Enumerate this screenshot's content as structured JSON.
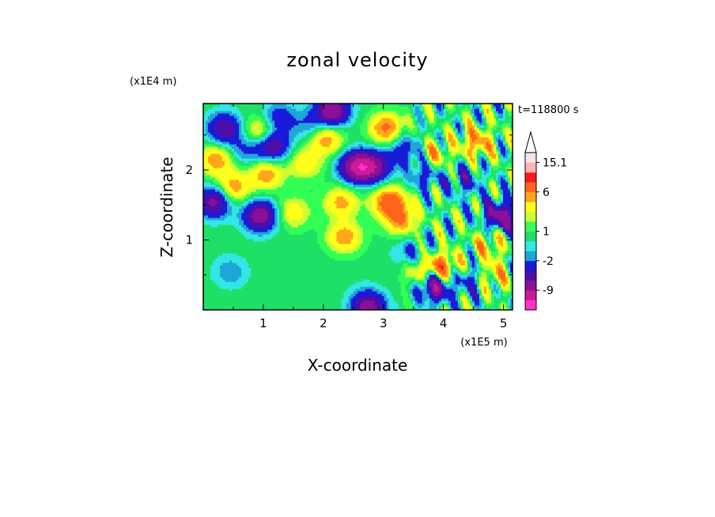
{
  "chart_data": {
    "type": "heatmap",
    "title": "zonal velocity",
    "xlabel": "X-coordinate",
    "ylabel": "Z-coordinate",
    "x_unit": "(x1E5 m)",
    "y_unit": "(x1E4 m)",
    "time_label": "t=118800 s",
    "xlim": [
      0,
      5.15
    ],
    "ylim": [
      0,
      2.95
    ],
    "x_ticks": [
      1,
      2,
      3,
      4,
      5
    ],
    "y_ticks": [
      1,
      2
    ],
    "colorbar": {
      "labels": [
        "15.1",
        "6",
        "1",
        "-2",
        "-9"
      ],
      "label_values": [
        15.1,
        6,
        1,
        -2,
        -9
      ],
      "bounds": [
        -15,
        -12,
        -9,
        -6,
        -4,
        -2,
        -1,
        0,
        1,
        2,
        3,
        4.5,
        6,
        9,
        12,
        15.1
      ],
      "colors": [
        "#ff33cc",
        "#cc1a99",
        "#8c0f99",
        "#4d0fa6",
        "#1a1ad9",
        "#1fa6d9",
        "#33e6e6",
        "#1fe066",
        "#33ff55",
        "#ccff33",
        "#ffff1a",
        "#ffa61a",
        "#ff6619",
        "#ff1a1a",
        "#ffb3b3",
        "#f5e6e6"
      ],
      "extend": "max"
    },
    "field": {
      "background": 0.6,
      "blobs": [
        {
          "x": 0.35,
          "y": 2.6,
          "v": -6.5
        },
        {
          "x": 0.22,
          "y": 2.15,
          "v": 5
        },
        {
          "x": 0.18,
          "y": 1.55,
          "v": -7.5
        },
        {
          "x": 0.5,
          "y": 1.75,
          "v": 5
        },
        {
          "x": 0.7,
          "y": 2.3,
          "v": -3
        },
        {
          "x": 0.95,
          "y": 2.55,
          "v": 4.5
        },
        {
          "x": 1.25,
          "y": 2.75,
          "v": -4
        },
        {
          "x": 1.15,
          "y": 2.35,
          "v": -7
        },
        {
          "x": 1.05,
          "y": 1.95,
          "v": 5
        },
        {
          "x": 0.95,
          "y": 1.35,
          "v": -8.5
        },
        {
          "x": 1.5,
          "y": 1.4,
          "v": 3.5
        },
        {
          "x": 1.7,
          "y": 2.1,
          "v": 3.5
        },
        {
          "x": 1.75,
          "y": 2.65,
          "v": -2.5
        },
        {
          "x": 2.15,
          "y": 2.85,
          "v": -9
        },
        {
          "x": 2.05,
          "y": 2.45,
          "v": 5
        },
        {
          "x": 2.55,
          "y": 2.05,
          "v": -10
        },
        {
          "x": 2.85,
          "y": 2.05,
          "v": -7
        },
        {
          "x": 2.3,
          "y": 1.55,
          "v": 4.5
        },
        {
          "x": 2.35,
          "y": 1.05,
          "v": 5
        },
        {
          "x": 3.1,
          "y": 1.55,
          "v": 7
        },
        {
          "x": 3.3,
          "y": 1.3,
          "v": 5
        },
        {
          "x": 3.35,
          "y": 2.3,
          "v": -4
        },
        {
          "x": 3.05,
          "y": 2.6,
          "v": 6
        },
        {
          "x": 3.7,
          "y": 1.95,
          "v": -4
        },
        {
          "x": 3.85,
          "y": 2.2,
          "v": 4
        },
        {
          "x": 4.35,
          "y": 1.85,
          "v": -3.5
        },
        {
          "x": 4.55,
          "y": 2.4,
          "v": 5
        },
        {
          "x": 4.95,
          "y": 1.35,
          "v": -8
        },
        {
          "x": 4.75,
          "y": 0.95,
          "v": 3.5
        },
        {
          "x": 4.0,
          "y": 0.6,
          "v": 7
        },
        {
          "x": 3.85,
          "y": 0.35,
          "v": -9
        },
        {
          "x": 3.6,
          "y": 0.55,
          "v": 4
        },
        {
          "x": 4.45,
          "y": 0.45,
          "v": -4
        },
        {
          "x": 4.8,
          "y": 0.5,
          "v": 4
        },
        {
          "x": 1.55,
          "y": 0.45,
          "v": -0.5
        },
        {
          "x": 2.6,
          "y": 0.3,
          "v": -0.3
        },
        {
          "x": 0.45,
          "y": 0.55,
          "v": -2.5
        },
        {
          "x": 2.75,
          "y": 0.05,
          "v": -8
        },
        {
          "x": 3.45,
          "y": 0.8,
          "v": -3
        }
      ]
    }
  }
}
